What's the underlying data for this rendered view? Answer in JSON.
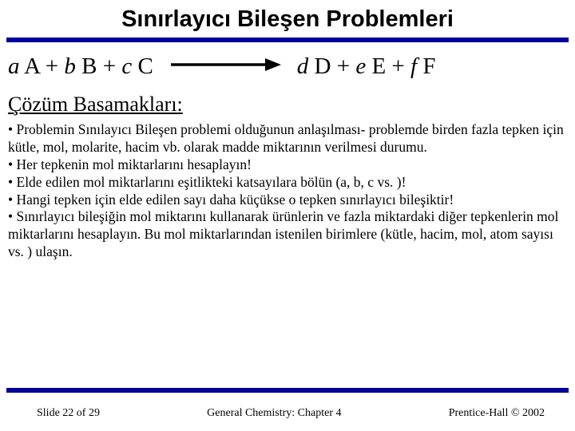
{
  "title": "Sınırlayıcı Bileşen Problemleri",
  "equation": {
    "left": [
      {
        "coef": "a",
        "sp": "A"
      },
      {
        "coef": "b",
        "sp": "B"
      },
      {
        "coef": "c",
        "sp": "C"
      }
    ],
    "right": [
      {
        "coef": "d",
        "sp": "D"
      },
      {
        "coef": "e",
        "sp": "E"
      },
      {
        "coef": "f",
        "sp": "F"
      }
    ],
    "plus": " + ",
    "arrow": {
      "length": 140,
      "stroke": "#000000",
      "stroke_width": 3.5
    }
  },
  "section_heading": "Çözüm Basamakları:",
  "bullets": [
    "• Problemin Sınılayıcı Bileşen problemi olduğunun anlaşılması- problemde birden fazla tepken için kütle, mol, molarite, hacim vb. olarak madde miktarının verilmesi durumu.",
    "• Her tepkenin mol miktarlarını hesaplayın!",
    "• Elde edilen mol miktarlarını eşitlikteki katsayılara bölün (a, b, c vs. )!",
    "• Hangi tepken için elde edilen sayı daha küçükse o tepken sınırlayıcı bileşiktir!",
    "• Sınırlayıcı bileşiğin mol miktarını kullanarak ürünlerin ve fazla miktardaki diğer tepkenlerin mol miktarlarını hesaplayın. Bu mol miktarlarından istenilen birimlere (kütle, hacim, mol, atom sayısı vs. ) ulaşın."
  ],
  "footer": {
    "left": "Slide 22 of 29",
    "center": "General Chemistry: Chapter 4",
    "right": "Prentice-Hall © 2002"
  },
  "colors": {
    "rule": "#000099",
    "text": "#000000",
    "background": "#ffffff"
  }
}
